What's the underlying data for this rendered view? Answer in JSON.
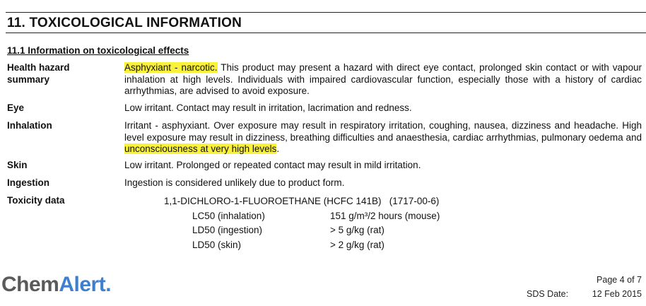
{
  "section_title": "11.  TOXICOLOGICAL INFORMATION",
  "subsection_title": "11.1  Information on toxicological effects",
  "rows": [
    {
      "label": "Health hazard summary",
      "highlight_before": "",
      "highlight": "Asphyxiant - narcotic.",
      "text": " This product may present a hazard with direct eye contact, prolonged skin contact or with vapour inhalation at high levels. Individuals with impaired cardiovascular function, especially those with a history of cardiac arrhythmias, are advised to avoid exposure."
    },
    {
      "label": "Eye",
      "text": "Low irritant. Contact may result in irritation, lacrimation and redness."
    },
    {
      "label": "Inhalation",
      "text": "Irritant - asphyxiant. Over exposure may result in respiratory irritation, coughing, nausea, dizziness and headache. High level exposure may result in dizziness, breathing difficulties and anaesthesia, cardiac arrhythmias, pulmonary oedema and ",
      "highlight": "unconsciousness at very high levels",
      "text_after": "."
    },
    {
      "label": "Skin",
      "text": "Low irritant. Prolonged or repeated contact may result in mild irritation."
    },
    {
      "label": "Ingestion",
      "text": "Ingestion is considered unlikely due to product form."
    },
    {
      "label": "Toxicity data"
    }
  ],
  "toxicity": {
    "substance": "1,1-DICHLORO-1-FLUOROETHANE (HCFC 141B)   (1717-00-6)",
    "entries": [
      {
        "test": "LC50 (inhalation)",
        "value": "151 g/m³/2 hours (mouse)"
      },
      {
        "test": "LD50 (ingestion)",
        "value": "> 5 g/kg (rat)"
      },
      {
        "test": "LD50 (skin)",
        "value": "> 2 g/kg (rat)"
      }
    ]
  },
  "footer": {
    "logo_part1": "Chem",
    "logo_part2": "Alert.",
    "page": "Page 4 of 7",
    "sds_date_label": "SDS Date:",
    "sds_date": "12 Feb 2015"
  },
  "colors": {
    "highlight": "#f9f13a",
    "logo_blue": "#3f7fd0",
    "logo_gray": "#5a5a5a"
  }
}
